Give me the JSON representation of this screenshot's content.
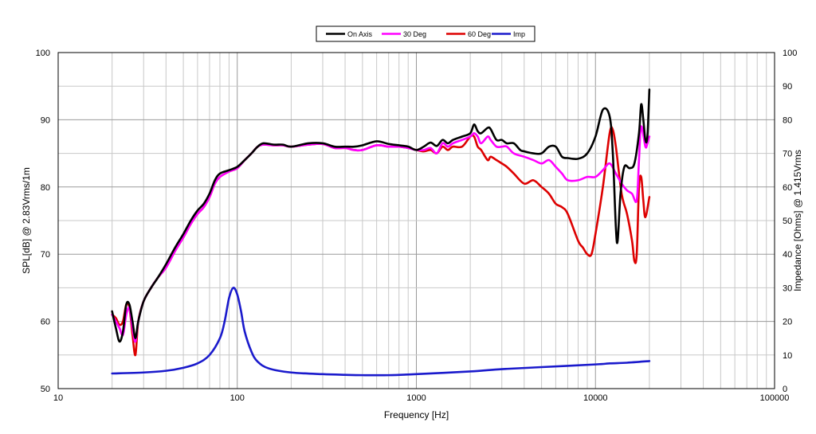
{
  "chart_data": {
    "type": "line",
    "xlabel": "Frequency [Hz]",
    "ylabel": "SPL[dB] @ 2.83Vrms/1m",
    "y2label": "Impedance [Ohms] @ 1.415Vrms",
    "x_scale": "log",
    "xlim": [
      10,
      100000
    ],
    "ylim": [
      50,
      100
    ],
    "y2lim": [
      0,
      100
    ],
    "grid": true,
    "legend_position": "top-center",
    "x_tick_labels": [
      "10",
      "100",
      "1000",
      "10000",
      "100000"
    ],
    "y_tick_labels": [
      "50",
      "60",
      "70",
      "80",
      "90",
      "100"
    ],
    "y2_tick_labels": [
      "0",
      "10",
      "20",
      "30",
      "40",
      "50",
      "60",
      "70",
      "80",
      "90",
      "100"
    ],
    "series": [
      {
        "name": "On Axis",
        "color": "#000000",
        "axis": "left",
        "points": [
          [
            20,
            61.5
          ],
          [
            21,
            59
          ],
          [
            22,
            57
          ],
          [
            23,
            58.5
          ],
          [
            24,
            62.5
          ],
          [
            25,
            62.5
          ],
          [
            26,
            60
          ],
          [
            27,
            57.5
          ],
          [
            28,
            60
          ],
          [
            30,
            63
          ],
          [
            33,
            65
          ],
          [
            36,
            66.5
          ],
          [
            40,
            68.5
          ],
          [
            45,
            71
          ],
          [
            50,
            73
          ],
          [
            55,
            75
          ],
          [
            60,
            76.5
          ],
          [
            65,
            77.5
          ],
          [
            70,
            79
          ],
          [
            75,
            81
          ],
          [
            80,
            82
          ],
          [
            90,
            82.5
          ],
          [
            100,
            83
          ],
          [
            110,
            84
          ],
          [
            120,
            85
          ],
          [
            130,
            86
          ],
          [
            140,
            86.5
          ],
          [
            160,
            86.3
          ],
          [
            180,
            86.3
          ],
          [
            200,
            86
          ],
          [
            250,
            86.5
          ],
          [
            300,
            86.5
          ],
          [
            350,
            86
          ],
          [
            400,
            86
          ],
          [
            450,
            86
          ],
          [
            500,
            86.2
          ],
          [
            600,
            86.8
          ],
          [
            700,
            86.4
          ],
          [
            800,
            86.2
          ],
          [
            900,
            86
          ],
          [
            1000,
            85.5
          ],
          [
            1100,
            86
          ],
          [
            1200,
            86.6
          ],
          [
            1300,
            86.1
          ],
          [
            1400,
            87
          ],
          [
            1500,
            86.5
          ],
          [
            1600,
            87
          ],
          [
            1800,
            87.5
          ],
          [
            2000,
            88
          ],
          [
            2100,
            89.3
          ],
          [
            2200,
            88.3
          ],
          [
            2300,
            88
          ],
          [
            2500,
            88.8
          ],
          [
            2600,
            88.6
          ],
          [
            2800,
            87
          ],
          [
            3000,
            87
          ],
          [
            3200,
            86.5
          ],
          [
            3500,
            86.5
          ],
          [
            3800,
            85.5
          ],
          [
            4000,
            85.3
          ],
          [
            4500,
            85
          ],
          [
            5000,
            85
          ],
          [
            5500,
            86
          ],
          [
            6000,
            86
          ],
          [
            6500,
            84.5
          ],
          [
            7000,
            84.3
          ],
          [
            8000,
            84.2
          ],
          [
            9000,
            85
          ],
          [
            10000,
            87.5
          ],
          [
            11000,
            91.5
          ],
          [
            12000,
            90.5
          ],
          [
            12500,
            85
          ],
          [
            13000,
            74
          ],
          [
            13300,
            72
          ],
          [
            13800,
            79
          ],
          [
            14500,
            83
          ],
          [
            15500,
            82.8
          ],
          [
            16500,
            83.5
          ],
          [
            17500,
            88
          ],
          [
            18000,
            92.3
          ],
          [
            18500,
            90
          ],
          [
            19000,
            87
          ],
          [
            19500,
            87.5
          ],
          [
            20000,
            94.5
          ]
        ]
      },
      {
        "name": "30 Deg",
        "color": "#ff00ff",
        "axis": "left",
        "points": [
          [
            20,
            61
          ],
          [
            21,
            60
          ],
          [
            22,
            59
          ],
          [
            23,
            58
          ],
          [
            24,
            61
          ],
          [
            25,
            62
          ],
          [
            26,
            59
          ],
          [
            27,
            57
          ],
          [
            28,
            60
          ],
          [
            30,
            63
          ],
          [
            33,
            65
          ],
          [
            36,
            66.5
          ],
          [
            40,
            68
          ],
          [
            45,
            70.5
          ],
          [
            50,
            72.5
          ],
          [
            55,
            74.5
          ],
          [
            60,
            76
          ],
          [
            65,
            77
          ],
          [
            70,
            78.5
          ],
          [
            75,
            80.5
          ],
          [
            80,
            81.5
          ],
          [
            90,
            82.3
          ],
          [
            100,
            82.8
          ],
          [
            110,
            84
          ],
          [
            120,
            85
          ],
          [
            130,
            86
          ],
          [
            140,
            86.3
          ],
          [
            160,
            86.2
          ],
          [
            180,
            86.2
          ],
          [
            200,
            86
          ],
          [
            250,
            86.3
          ],
          [
            300,
            86.4
          ],
          [
            350,
            85.8
          ],
          [
            400,
            85.8
          ],
          [
            450,
            85.5
          ],
          [
            500,
            85.5
          ],
          [
            600,
            86.2
          ],
          [
            700,
            86
          ],
          [
            800,
            86
          ],
          [
            900,
            85.8
          ],
          [
            1000,
            85.5
          ],
          [
            1100,
            85.5
          ],
          [
            1200,
            85.8
          ],
          [
            1300,
            85
          ],
          [
            1400,
            86.5
          ],
          [
            1500,
            86
          ],
          [
            1600,
            86.5
          ],
          [
            1800,
            87
          ],
          [
            2000,
            87.5
          ],
          [
            2100,
            88
          ],
          [
            2200,
            87.5
          ],
          [
            2300,
            86.5
          ],
          [
            2500,
            87.5
          ],
          [
            2600,
            87
          ],
          [
            2800,
            86
          ],
          [
            3000,
            86
          ],
          [
            3200,
            86
          ],
          [
            3500,
            85
          ],
          [
            4000,
            84.5
          ],
          [
            4500,
            84
          ],
          [
            5000,
            83.5
          ],
          [
            5500,
            84
          ],
          [
            6000,
            83
          ],
          [
            6500,
            82
          ],
          [
            7000,
            81
          ],
          [
            8000,
            81
          ],
          [
            9000,
            81.5
          ],
          [
            10000,
            81.5
          ],
          [
            11000,
            82.5
          ],
          [
            12000,
            83.5
          ],
          [
            13000,
            82
          ],
          [
            14000,
            80.5
          ],
          [
            15000,
            79.5
          ],
          [
            16000,
            79
          ],
          [
            17000,
            78
          ],
          [
            17500,
            84
          ],
          [
            18000,
            89
          ],
          [
            19000,
            86
          ],
          [
            19500,
            86.5
          ],
          [
            20000,
            87.5
          ]
        ]
      },
      {
        "name": "60 Deg",
        "color": "#dd0000",
        "axis": "left",
        "points": [
          [
            20,
            61
          ],
          [
            21,
            60.5
          ],
          [
            22,
            59.5
          ],
          [
            23,
            60
          ],
          [
            24,
            62.5
          ],
          [
            25,
            62
          ],
          [
            26,
            58
          ],
          [
            27,
            55
          ],
          [
            28,
            60
          ],
          [
            30,
            63
          ],
          [
            33,
            65
          ],
          [
            36,
            66.5
          ],
          [
            40,
            68
          ],
          [
            45,
            70.5
          ],
          [
            50,
            72.5
          ],
          [
            55,
            74.5
          ],
          [
            60,
            76
          ],
          [
            65,
            77
          ],
          [
            70,
            78.5
          ],
          [
            75,
            80.5
          ],
          [
            80,
            81.5
          ],
          [
            90,
            82.3
          ],
          [
            100,
            82.8
          ],
          [
            110,
            84
          ],
          [
            120,
            85
          ],
          [
            130,
            86
          ],
          [
            140,
            86.3
          ],
          [
            160,
            86.2
          ],
          [
            180,
            86.2
          ],
          [
            200,
            86
          ],
          [
            250,
            86.3
          ],
          [
            300,
            86.4
          ],
          [
            350,
            85.8
          ],
          [
            400,
            85.8
          ],
          [
            450,
            85.5
          ],
          [
            500,
            85.5
          ],
          [
            600,
            86.2
          ],
          [
            700,
            86
          ],
          [
            800,
            86
          ],
          [
            900,
            85.8
          ],
          [
            1000,
            85.5
          ],
          [
            1100,
            85.3
          ],
          [
            1200,
            85.5
          ],
          [
            1300,
            85
          ],
          [
            1400,
            86
          ],
          [
            1500,
            85.5
          ],
          [
            1600,
            86
          ],
          [
            1800,
            86
          ],
          [
            2000,
            87.5
          ],
          [
            2100,
            87.5
          ],
          [
            2200,
            86
          ],
          [
            2300,
            85.5
          ],
          [
            2500,
            84
          ],
          [
            2600,
            84.5
          ],
          [
            2800,
            84
          ],
          [
            3000,
            83.5
          ],
          [
            3200,
            83
          ],
          [
            3500,
            82
          ],
          [
            4000,
            80.5
          ],
          [
            4500,
            81
          ],
          [
            5000,
            80
          ],
          [
            5500,
            79
          ],
          [
            6000,
            77.5
          ],
          [
            6500,
            77
          ],
          [
            7000,
            76
          ],
          [
            8000,
            72
          ],
          [
            8500,
            71
          ],
          [
            9000,
            70
          ],
          [
            9500,
            70
          ],
          [
            10000,
            73
          ],
          [
            11000,
            80
          ],
          [
            12000,
            88
          ],
          [
            12500,
            88.5
          ],
          [
            13000,
            86
          ],
          [
            14000,
            79
          ],
          [
            15000,
            76
          ],
          [
            16000,
            72
          ],
          [
            16500,
            69
          ],
          [
            17000,
            70
          ],
          [
            17500,
            80
          ],
          [
            18000,
            81.5
          ],
          [
            18500,
            78
          ],
          [
            19000,
            75.5
          ],
          [
            20000,
            78.5
          ]
        ]
      },
      {
        "name": "Imp",
        "color": "#1a1acc",
        "axis": "right",
        "points": [
          [
            20,
            4.5
          ],
          [
            30,
            4.8
          ],
          [
            40,
            5.3
          ],
          [
            50,
            6.2
          ],
          [
            60,
            7.5
          ],
          [
            70,
            10
          ],
          [
            80,
            15
          ],
          [
            85,
            20
          ],
          [
            90,
            27
          ],
          [
            95,
            30
          ],
          [
            100,
            28
          ],
          [
            105,
            23
          ],
          [
            110,
            17
          ],
          [
            120,
            11
          ],
          [
            130,
            8
          ],
          [
            150,
            6
          ],
          [
            200,
            4.8
          ],
          [
            300,
            4.3
          ],
          [
            400,
            4.1
          ],
          [
            500,
            4
          ],
          [
            700,
            4
          ],
          [
            1000,
            4.3
          ],
          [
            2000,
            5.1
          ],
          [
            3000,
            5.8
          ],
          [
            5000,
            6.4
          ],
          [
            10000,
            7.2
          ],
          [
            12000,
            7.5
          ],
          [
            15000,
            7.7
          ],
          [
            20000,
            8.2
          ]
        ]
      }
    ]
  }
}
